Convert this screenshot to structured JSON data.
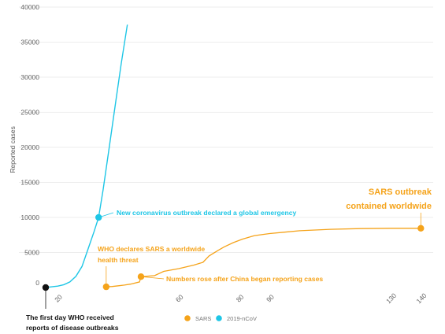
{
  "chart_data": {
    "type": "line",
    "ylabel": "Reported cases",
    "ylim": [
      0,
      40000
    ],
    "y_ticks": [
      "40000",
      "35000",
      "30000",
      "25000",
      "20000",
      "15000",
      "10000",
      "5000",
      "0"
    ],
    "y_tick_values": [
      40000,
      35000,
      30000,
      25000,
      20000,
      15000,
      10000,
      5000,
      0
    ],
    "x_ticks": [
      {
        "label": "20",
        "value": 20
      },
      {
        "label": "60",
        "value": 60
      },
      {
        "label": "80",
        "value": 80
      },
      {
        "label": "90",
        "value": 90
      },
      {
        "label": "130",
        "value": 130
      },
      {
        "label": "140",
        "value": 140
      }
    ],
    "xlim": [
      16,
      142
    ],
    "grid": true,
    "legend_position": "bottom",
    "series": [
      {
        "name": "SARS",
        "color": "#f5a31a",
        "points": [
          [
            36,
            100
          ],
          [
            38,
            150
          ],
          [
            40,
            250
          ],
          [
            42,
            350
          ],
          [
            44,
            480
          ],
          [
            47,
            800
          ],
          [
            47.5,
            1550
          ],
          [
            52,
            1700
          ],
          [
            55,
            2300
          ],
          [
            60,
            2700
          ],
          [
            65,
            3200
          ],
          [
            68,
            3600
          ],
          [
            70,
            4500
          ],
          [
            73,
            5300
          ],
          [
            75,
            5800
          ],
          [
            78,
            6400
          ],
          [
            81,
            6900
          ],
          [
            85,
            7400
          ],
          [
            90,
            7700
          ],
          [
            95,
            7900
          ],
          [
            100,
            8100
          ],
          [
            110,
            8300
          ],
          [
            120,
            8400
          ],
          [
            130,
            8450
          ],
          [
            140,
            8450
          ]
        ]
      },
      {
        "name": "2019-nCoV",
        "color": "#1ec6e6",
        "points": [
          [
            16,
            0
          ],
          [
            18,
            100
          ],
          [
            20,
            200
          ],
          [
            22,
            400
          ],
          [
            24,
            800
          ],
          [
            26,
            1600
          ],
          [
            28,
            3000
          ],
          [
            30,
            5500
          ],
          [
            32,
            8000
          ],
          [
            33.5,
            10000
          ],
          [
            35,
            14000
          ],
          [
            37,
            20000
          ],
          [
            39,
            26000
          ],
          [
            41,
            32000
          ],
          [
            43,
            37500
          ]
        ]
      }
    ]
  },
  "annotations": {
    "first_day": {
      "line1": "The first day WHO received",
      "line2": "reports of disease outbreaks"
    },
    "sars_threat": {
      "line1": "WHO declares SARS a worldwide",
      "line2": "health threat"
    },
    "china_reporting": "Numbers rose after China began reporting cases",
    "ncov_emergency": "New coronavirus outbreak declared a global emergency",
    "sars_contained": {
      "line1": "SARS outbreak",
      "line2": "contained worldwide"
    }
  },
  "markers": {
    "origin": {
      "x": 16,
      "y": 0
    },
    "sars_threat": {
      "x": 36,
      "y": 100
    },
    "china_reporting": {
      "x": 47.5,
      "y": 1550
    },
    "ncov_emergency": {
      "x": 33.5,
      "y": 10000
    },
    "sars_contained": {
      "x": 140,
      "y": 8450
    }
  },
  "colors": {
    "sars": "#f5a31a",
    "ncov": "#1ec6e6",
    "origin": "#111111",
    "grid": "#e6e6e6"
  }
}
